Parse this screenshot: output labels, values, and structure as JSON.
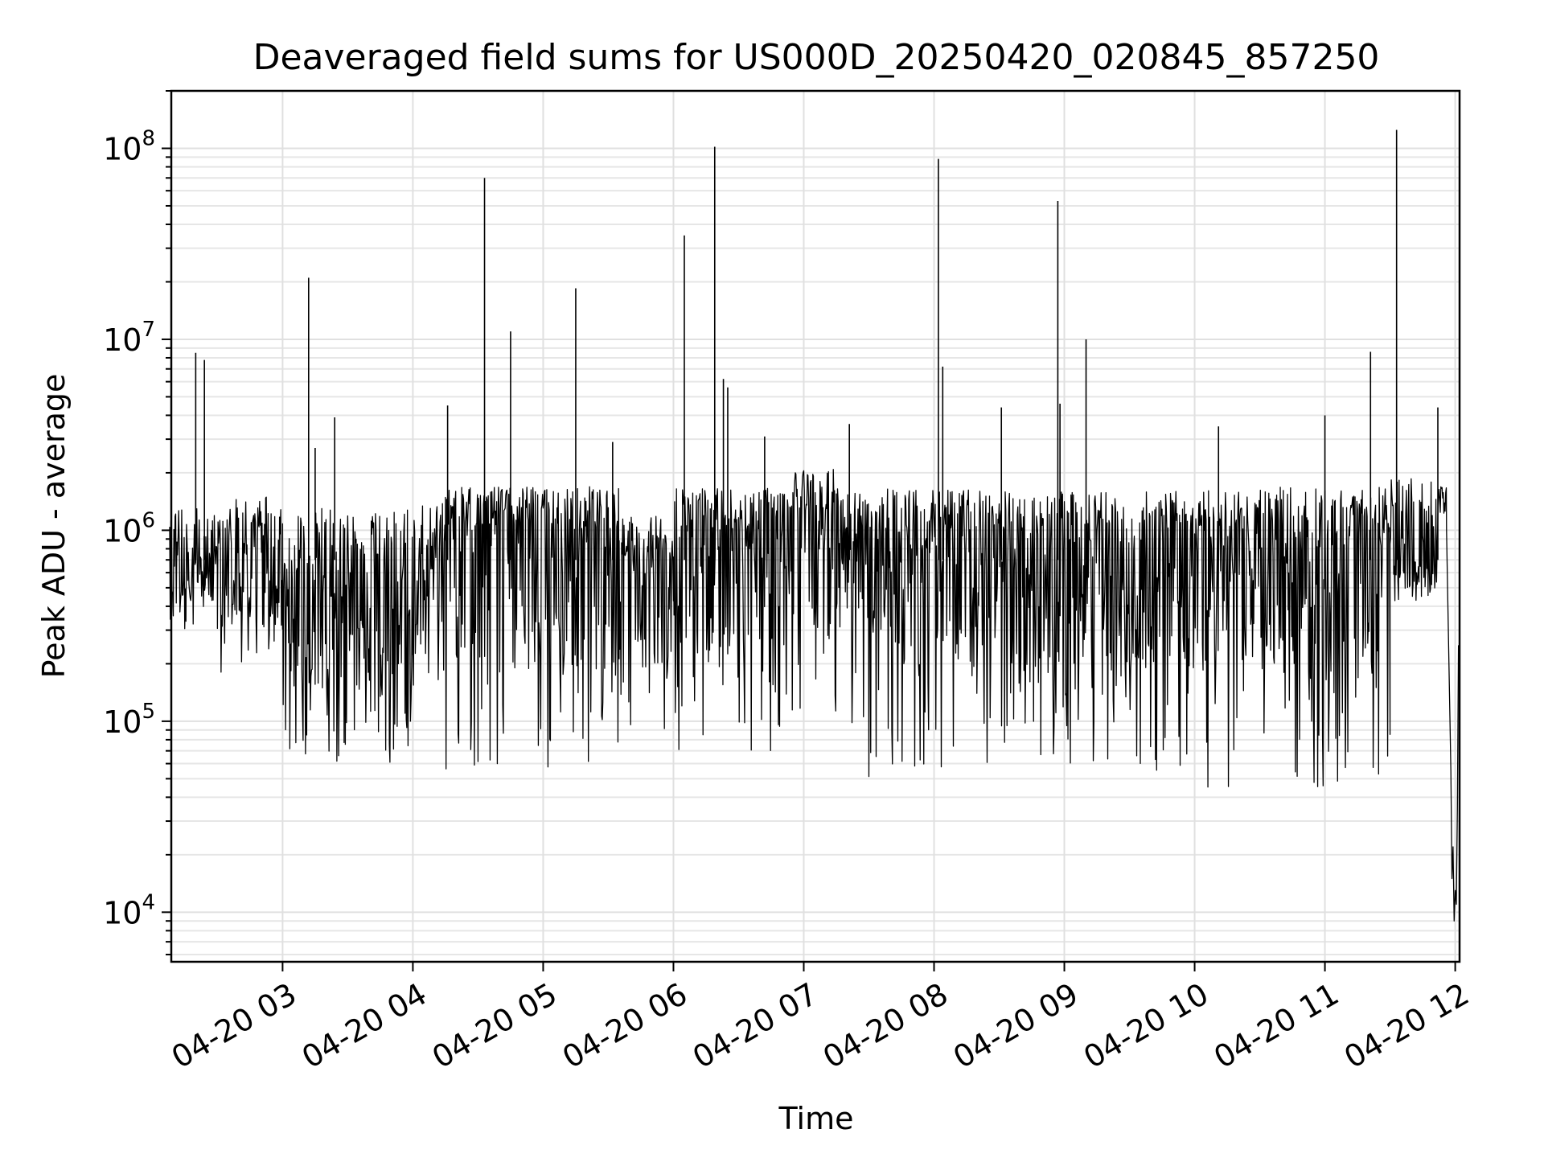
{
  "chart_data": {
    "type": "line",
    "title": "Deaveraged field sums for US000D_20250420_020845_857250",
    "xlabel": "Time",
    "ylabel": "Peak ADU - average",
    "yscale": "log",
    "ylim": [
      5500,
      200000000
    ],
    "xlim": [
      "2025-04-20 02:08:45",
      "2025-04-20 12:02:00"
    ],
    "grid": true,
    "line_color": "#000000",
    "x_ticks": [
      {
        "label": "04-20 03",
        "time": "2025-04-20 03:00"
      },
      {
        "label": "04-20 04",
        "time": "2025-04-20 04:00"
      },
      {
        "label": "04-20 05",
        "time": "2025-04-20 05:00"
      },
      {
        "label": "04-20 06",
        "time": "2025-04-20 06:00"
      },
      {
        "label": "04-20 07",
        "time": "2025-04-20 07:00"
      },
      {
        "label": "04-20 08",
        "time": "2025-04-20 08:00"
      },
      {
        "label": "04-20 09",
        "time": "2025-04-20 09:00"
      },
      {
        "label": "04-20 10",
        "time": "2025-04-20 10:00"
      },
      {
        "label": "04-20 11",
        "time": "2025-04-20 11:00"
      },
      {
        "label": "04-20 12",
        "time": "2025-04-20 12:00"
      }
    ],
    "y_ticks": [
      {
        "base": "10",
        "exp": "4",
        "value": 10000
      },
      {
        "base": "10",
        "exp": "5",
        "value": 100000
      },
      {
        "base": "10",
        "exp": "6",
        "value": 1000000
      },
      {
        "base": "10",
        "exp": "7",
        "value": 10000000
      },
      {
        "base": "10",
        "exp": "8",
        "value": 100000000
      }
    ],
    "spikes": [
      {
        "time": "2025-04-20 02:20",
        "value": 8500000
      },
      {
        "time": "2025-04-20 02:24",
        "value": 7800000
      },
      {
        "time": "2025-04-20 03:12",
        "value": 21000000
      },
      {
        "time": "2025-04-20 03:15",
        "value": 2700000
      },
      {
        "time": "2025-04-20 03:24",
        "value": 3900000
      },
      {
        "time": "2025-04-20 04:16",
        "value": 4500000
      },
      {
        "time": "2025-04-20 04:33",
        "value": 70000000
      },
      {
        "time": "2025-04-20 04:45",
        "value": 11000000
      },
      {
        "time": "2025-04-20 05:15",
        "value": 18500000
      },
      {
        "time": "2025-04-20 05:32",
        "value": 2900000
      },
      {
        "time": "2025-04-20 06:05",
        "value": 35000000
      },
      {
        "time": "2025-04-20 06:19",
        "value": 102000000
      },
      {
        "time": "2025-04-20 06:23",
        "value": 6200000
      },
      {
        "time": "2025-04-20 06:25",
        "value": 5600000
      },
      {
        "time": "2025-04-20 06:42",
        "value": 3100000
      },
      {
        "time": "2025-04-20 07:21",
        "value": 3600000
      },
      {
        "time": "2025-04-20 08:02",
        "value": 88000000
      },
      {
        "time": "2025-04-20 08:04",
        "value": 7200000
      },
      {
        "time": "2025-04-20 08:31",
        "value": 4400000
      },
      {
        "time": "2025-04-20 08:57",
        "value": 53000000
      },
      {
        "time": "2025-04-20 08:58",
        "value": 4600000
      },
      {
        "time": "2025-04-20 09:10",
        "value": 10000000
      },
      {
        "time": "2025-04-20 10:11",
        "value": 3500000
      },
      {
        "time": "2025-04-20 11:00",
        "value": 4000000
      },
      {
        "time": "2025-04-20 11:21",
        "value": 8600000
      },
      {
        "time": "2025-04-20 11:33",
        "value": 125000000
      },
      {
        "time": "2025-04-20 11:52",
        "value": 4400000
      }
    ],
    "segments": [
      {
        "start": "2025-04-20 02:08",
        "end": "2025-04-20 02:30",
        "median": 650000,
        "high": 1300000,
        "low": 300000
      },
      {
        "start": "2025-04-20 02:30",
        "end": "2025-04-20 03:00",
        "median": 600000,
        "high": 1500000,
        "low": 180000
      },
      {
        "start": "2025-04-20 03:00",
        "end": "2025-04-20 04:00",
        "median": 420000,
        "high": 1300000,
        "low": 60000
      },
      {
        "start": "2025-04-20 04:00",
        "end": "2025-04-20 04:15",
        "median": 650000,
        "high": 1400000,
        "low": 150000
      },
      {
        "start": "2025-04-20 04:15",
        "end": "2025-04-20 05:35",
        "median": 1000000,
        "high": 1700000,
        "low": 50000
      },
      {
        "start": "2025-04-20 05:35",
        "end": "2025-04-20 06:00",
        "median": 600000,
        "high": 1200000,
        "low": 80000
      },
      {
        "start": "2025-04-20 06:00",
        "end": "2025-04-20 06:55",
        "median": 900000,
        "high": 1700000,
        "low": 70000
      },
      {
        "start": "2025-04-20 06:55",
        "end": "2025-04-20 07:15",
        "median": 1200000,
        "high": 2100000,
        "low": 110000
      },
      {
        "start": "2025-04-20 07:15",
        "end": "2025-04-20 08:40",
        "median": 800000,
        "high": 1650000,
        "low": 50000
      },
      {
        "start": "2025-04-20 08:40",
        "end": "2025-04-20 10:05",
        "median": 800000,
        "high": 1600000,
        "low": 55000
      },
      {
        "start": "2025-04-20 10:05",
        "end": "2025-04-20 11:30",
        "median": 750000,
        "high": 1700000,
        "low": 45000
      },
      {
        "start": "2025-04-20 11:30",
        "end": "2025-04-20 11:52",
        "median": 650000,
        "high": 1900000,
        "low": 400000
      },
      {
        "start": "2025-04-20 11:52",
        "end": "2025-04-20 11:56",
        "median": 1300000,
        "high": 1700000,
        "low": 1100000
      }
    ],
    "tail": [
      {
        "time": "2025-04-20 11:56",
        "value": 1000000
      },
      {
        "time": "2025-04-20 11:58",
        "value": 55000
      },
      {
        "time": "2025-04-20 11:58:30",
        "value": 15000
      },
      {
        "time": "2025-04-20 11:59",
        "value": 22000
      },
      {
        "time": "2025-04-20 11:59:30",
        "value": 9000
      },
      {
        "time": "2025-04-20 12:00",
        "value": 13000
      },
      {
        "time": "2025-04-20 12:00:30",
        "value": 11000
      },
      {
        "time": "2025-04-20 12:01",
        "value": 35000
      },
      {
        "time": "2025-04-20 12:01:30",
        "value": 250000
      }
    ]
  }
}
